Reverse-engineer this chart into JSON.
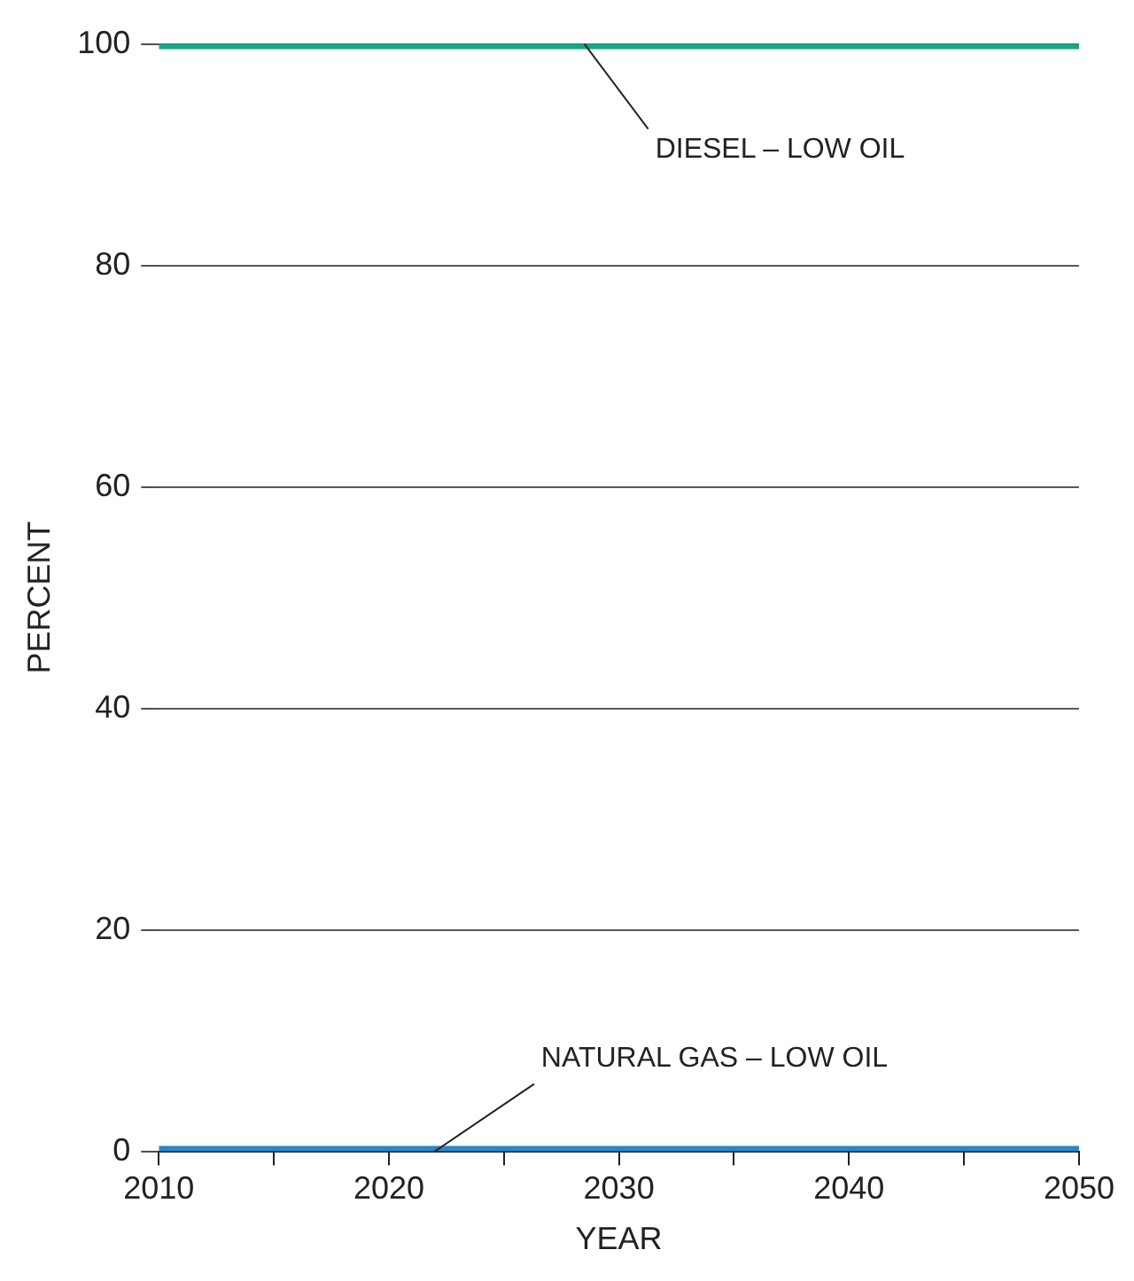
{
  "chart_data": {
    "type": "line",
    "xlabel": "YEAR",
    "ylabel": "PERCENT",
    "x": [
      2010,
      2050
    ],
    "series": [
      {
        "color": "#14a884",
        "values": [
          100,
          100
        ]
      },
      {
        "color": "#2a86c8",
        "values": [
          0,
          0
        ]
      }
    ],
    "xlim": [
      2010,
      2050
    ],
    "xticks": [
      2010,
      {
        "value": 2015,
        "label": null
      },
      2020,
      {
        "value": 2025,
        "label": null
      },
      2030,
      {
        "value": 2035,
        "label": null
      },
      2040,
      {
        "value": 2045,
        "label": null
      },
      2050
    ],
    "ylim": [
      0,
      100
    ],
    "yticks": [
      0,
      20,
      40,
      60,
      80,
      100
    ],
    "grid": "y",
    "legend": false,
    "marker": "none",
    "line_style": "solid",
    "annotations": [
      {
        "text": "DIESEL – LOW OIL",
        "x": 2028.5,
        "y": 100
      },
      {
        "text": "NATURAL GAS – LOW OIL",
        "x": 2022,
        "y": 0
      }
    ]
  }
}
